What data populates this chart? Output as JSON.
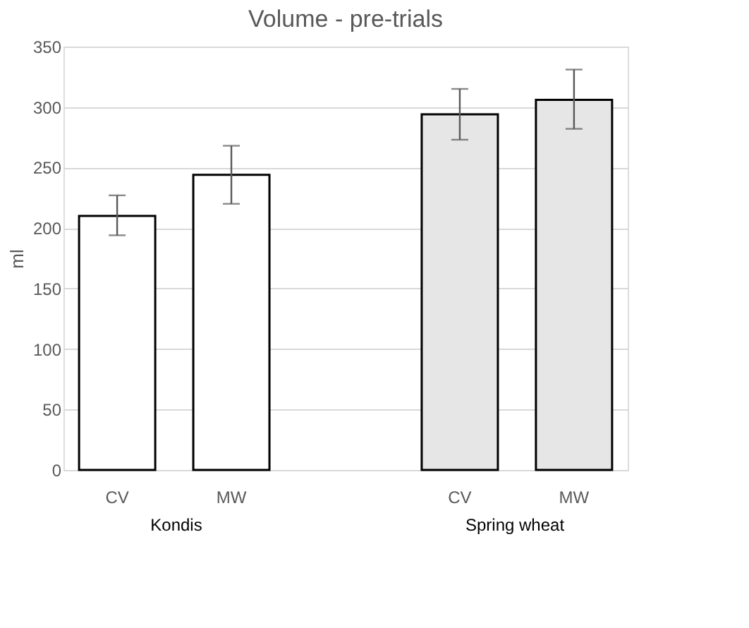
{
  "chart_data": {
    "type": "bar",
    "title": "Volume - pre-trials",
    "ylabel": "ml",
    "categories": [
      "CV",
      "MW",
      "CV",
      "MW"
    ],
    "values": [
      210,
      244,
      294,
      306
    ],
    "errors": [
      [
        194,
        227
      ],
      [
        220,
        268
      ],
      [
        273,
        315
      ],
      [
        282,
        331
      ]
    ],
    "colors": [
      "#ffffff",
      "#ffffff",
      "#e6e6e6",
      "#e6e6e6"
    ],
    "annotations": [
      "Kondis",
      "Spring wheat"
    ],
    "ylim": [
      0,
      350
    ],
    "yticks": [
      0,
      50,
      100,
      150,
      200,
      250,
      300,
      350
    ],
    "grid": "y"
  }
}
